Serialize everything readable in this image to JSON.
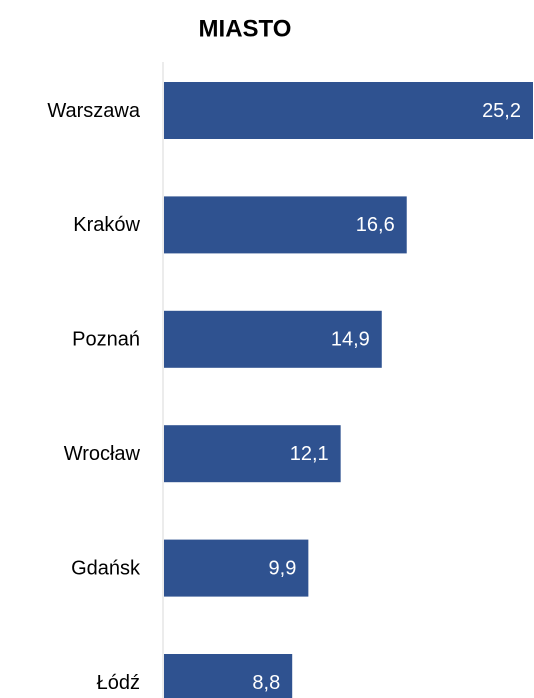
{
  "chart_data": {
    "type": "hbar",
    "title": "MIASTO",
    "categories": [
      "Warszawa",
      "Kraków",
      "Poznań",
      "Wrocław",
      "Gdańsk",
      "Łódź"
    ],
    "values": [
      25.2,
      16.6,
      14.9,
      12.1,
      9.9,
      8.8
    ],
    "value_labels": [
      "25,2",
      "16,6",
      "14,9",
      "12,1",
      "9,9",
      "8,8"
    ],
    "color": "#2f5290"
  }
}
